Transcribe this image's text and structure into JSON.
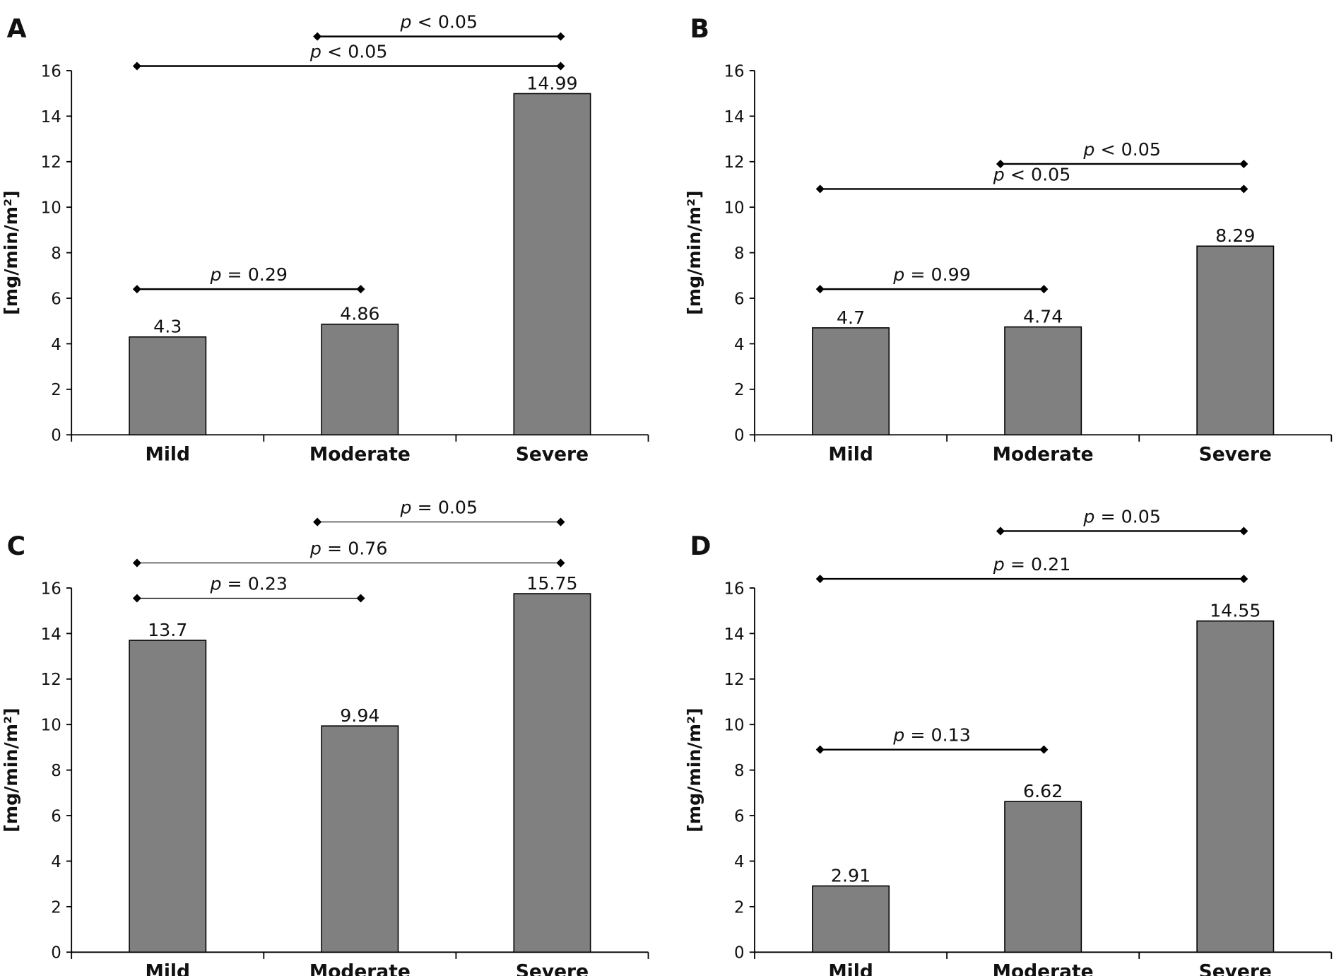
{
  "chart_data": [
    {
      "panel": "A",
      "type": "bar",
      "categories": [
        "Mild",
        "Moderate",
        "Severe"
      ],
      "values": [
        4.3,
        4.86,
        14.99
      ],
      "value_labels": [
        "4.3",
        "4.86",
        "14.99"
      ],
      "ylabel": "[mg/min/m²]",
      "ylim": [
        0,
        16
      ],
      "yticks": [
        "0",
        "2",
        "4",
        "6",
        "8",
        "10",
        "12",
        "14",
        "16"
      ],
      "bar_color": "#808080",
      "comparisons": [
        {
          "from": "Moderate",
          "to": "Severe",
          "label": "p < 0.05",
          "level": 17.5
        },
        {
          "from": "Mild",
          "to": "Severe",
          "label": "p < 0.05",
          "level": 16.2
        },
        {
          "from": "Mild",
          "to": "Moderate",
          "label": "p = 0.29",
          "level": 6.4
        }
      ]
    },
    {
      "panel": "B",
      "type": "bar",
      "categories": [
        "Mild",
        "Moderate",
        "Severe"
      ],
      "values": [
        4.7,
        4.74,
        8.29
      ],
      "value_labels": [
        "4.7",
        "4.74",
        "8.29"
      ],
      "ylabel": "[mg/min/m²]",
      "ylim": [
        0,
        16
      ],
      "yticks": [
        "0",
        "2",
        "4",
        "6",
        "8",
        "10",
        "12",
        "14",
        "16"
      ],
      "bar_color": "#808080",
      "comparisons": [
        {
          "from": "Moderate",
          "to": "Severe",
          "label": "p < 0.05",
          "level": 11.9
        },
        {
          "from": "Mild",
          "to": "Severe",
          "label": "p < 0.05",
          "level": 10.8
        },
        {
          "from": "Mild",
          "to": "Moderate",
          "label": "p = 0.99",
          "level": 6.4
        }
      ]
    },
    {
      "panel": "C",
      "type": "bar",
      "categories": [
        "Mild",
        "Moderate",
        "Severe"
      ],
      "values": [
        13.7,
        9.94,
        15.75
      ],
      "value_labels": [
        "13.7",
        "9.94",
        "15.75"
      ],
      "ylabel": "[mg/min/m²]",
      "ylim": [
        0,
        16
      ],
      "yticks": [
        "0",
        "2",
        "4",
        "6",
        "8",
        "10",
        "12",
        "14",
        "16"
      ],
      "bar_color": "#808080",
      "comparisons": [
        {
          "from": "Moderate",
          "to": "Severe",
          "label": "p = 0.05",
          "level": 18.9
        },
        {
          "from": "Mild",
          "to": "Severe",
          "label": "p = 0.76",
          "level": 17.1
        },
        {
          "from": "Mild",
          "to": "Moderate",
          "label": "p = 0.23",
          "level": 15.55
        }
      ]
    },
    {
      "panel": "D",
      "type": "bar",
      "categories": [
        "Mild",
        "Moderate",
        "Severe"
      ],
      "values": [
        2.91,
        6.62,
        14.55
      ],
      "value_labels": [
        "2.91",
        "6.62",
        "14.55"
      ],
      "ylabel": "[mg/min/m²]",
      "ylim": [
        0,
        16
      ],
      "yticks": [
        "0",
        "2",
        "4",
        "6",
        "8",
        "10",
        "12",
        "14",
        "16"
      ],
      "bar_color": "#808080",
      "comparisons": [
        {
          "from": "Moderate",
          "to": "Severe",
          "label": "p = 0.05",
          "level": 18.5
        },
        {
          "from": "Mild",
          "to": "Severe",
          "label": "p = 0.21",
          "level": 16.4
        },
        {
          "from": "Mild",
          "to": "Moderate",
          "label": "p = 0.13",
          "level": 8.9
        }
      ]
    }
  ]
}
